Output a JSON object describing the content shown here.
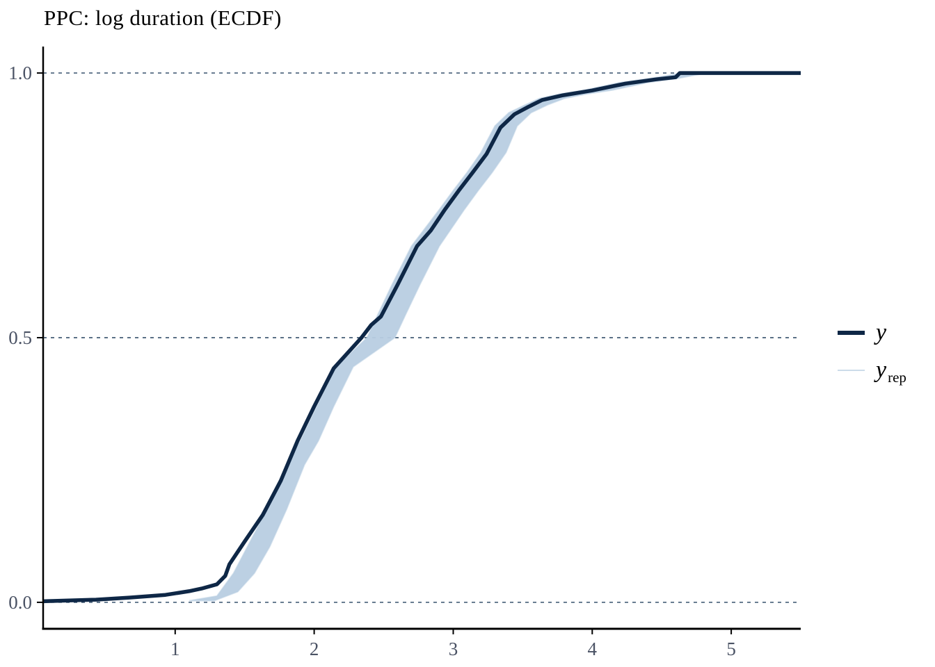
{
  "title": "PPC: log duration (ECDF)",
  "legend": {
    "items": [
      {
        "label": "y",
        "sub": "",
        "swatch": "thick-navy-line"
      },
      {
        "label": "y",
        "sub": "rep",
        "swatch": "thin-lightblue-line"
      }
    ]
  },
  "colors": {
    "y_line": "#0e2746",
    "yrep_band": "#b8cee1",
    "yrep_legend_line": "#ccdce9",
    "gridline": "#24405f",
    "axis": "#000000",
    "tick_label": "#4a5264",
    "title": "#000000",
    "background": "#ffffff"
  },
  "chart_data": {
    "type": "line",
    "subtype": "ecdf-posterior-predictive-check",
    "title": "PPC: log duration (ECDF)",
    "xlabel": "",
    "ylabel": "",
    "xlim": [
      0.05,
      5.5
    ],
    "ylim": [
      -0.05,
      1.05
    ],
    "x_ticks": [
      1,
      2,
      3,
      4,
      5
    ],
    "y_ticks": {
      "values": [
        0,
        0.5,
        1
      ],
      "labels": [
        "0.0",
        "0.5",
        "1.0"
      ]
    },
    "grid": "dashed horizontal lines at y ticks only",
    "legend_position": "right-center",
    "series": [
      {
        "name": "y",
        "style": "thick dark navy ECDF step-curve",
        "color": "#0e2746",
        "points": [
          [
            0.05,
            0.002
          ],
          [
            0.43,
            0.005
          ],
          [
            0.67,
            0.009
          ],
          [
            0.93,
            0.014
          ],
          [
            1.1,
            0.021
          ],
          [
            1.19,
            0.026
          ],
          [
            1.3,
            0.034
          ],
          [
            1.36,
            0.05
          ],
          [
            1.39,
            0.072
          ],
          [
            1.5,
            0.115
          ],
          [
            1.63,
            0.165
          ],
          [
            1.76,
            0.23
          ],
          [
            1.88,
            0.305
          ],
          [
            2.0,
            0.37
          ],
          [
            2.14,
            0.442
          ],
          [
            2.34,
            0.5
          ],
          [
            2.41,
            0.524
          ],
          [
            2.48,
            0.54
          ],
          [
            2.6,
            0.6
          ],
          [
            2.74,
            0.673
          ],
          [
            2.84,
            0.703
          ],
          [
            2.94,
            0.742
          ],
          [
            3.04,
            0.778
          ],
          [
            3.14,
            0.812
          ],
          [
            3.24,
            0.847
          ],
          [
            3.34,
            0.897
          ],
          [
            3.44,
            0.922
          ],
          [
            3.54,
            0.936
          ],
          [
            3.64,
            0.949
          ],
          [
            3.79,
            0.958
          ],
          [
            4.0,
            0.967
          ],
          [
            4.24,
            0.98
          ],
          [
            4.46,
            0.988
          ],
          [
            4.6,
            0.992
          ],
          [
            4.63,
            1.0
          ],
          [
            5.5,
            1.0
          ]
        ]
      },
      {
        "name": "y_rep",
        "style": "bundle of thin light-blue replicate ECDF curves forming a band",
        "color": "#b8cee1",
        "band_left": [
          [
            1.1,
            0.003
          ],
          [
            1.3,
            0.012
          ],
          [
            1.42,
            0.055
          ],
          [
            1.52,
            0.105
          ],
          [
            1.66,
            0.175
          ],
          [
            1.8,
            0.26
          ],
          [
            1.9,
            0.305
          ],
          [
            2.02,
            0.37
          ],
          [
            2.16,
            0.445
          ],
          [
            2.38,
            0.5
          ],
          [
            2.46,
            0.545
          ],
          [
            2.56,
            0.6
          ],
          [
            2.7,
            0.673
          ],
          [
            2.9,
            0.742
          ],
          [
            3.0,
            0.778
          ],
          [
            3.1,
            0.812
          ],
          [
            3.2,
            0.85
          ],
          [
            3.3,
            0.9
          ],
          [
            3.4,
            0.925
          ],
          [
            3.52,
            0.94
          ],
          [
            3.62,
            0.952
          ],
          [
            3.76,
            0.96
          ],
          [
            3.95,
            0.968
          ],
          [
            4.2,
            0.982
          ],
          [
            4.42,
            0.99
          ],
          [
            4.56,
            0.996
          ],
          [
            4.66,
            1.0
          ]
        ],
        "band_right": [
          [
            1.28,
            0.003
          ],
          [
            1.45,
            0.02
          ],
          [
            1.57,
            0.055
          ],
          [
            1.68,
            0.105
          ],
          [
            1.8,
            0.175
          ],
          [
            1.93,
            0.26
          ],
          [
            2.03,
            0.305
          ],
          [
            2.14,
            0.37
          ],
          [
            2.28,
            0.445
          ],
          [
            2.58,
            0.5
          ],
          [
            2.66,
            0.545
          ],
          [
            2.76,
            0.6
          ],
          [
            2.9,
            0.673
          ],
          [
            3.08,
            0.742
          ],
          [
            3.18,
            0.778
          ],
          [
            3.28,
            0.812
          ],
          [
            3.38,
            0.85
          ],
          [
            3.46,
            0.9
          ],
          [
            3.56,
            0.925
          ],
          [
            3.68,
            0.94
          ],
          [
            3.8,
            0.952
          ],
          [
            3.95,
            0.96
          ],
          [
            4.15,
            0.968
          ],
          [
            4.4,
            0.982
          ],
          [
            4.62,
            0.99
          ],
          [
            4.74,
            0.996
          ],
          [
            4.82,
            1.0
          ]
        ]
      }
    ]
  }
}
